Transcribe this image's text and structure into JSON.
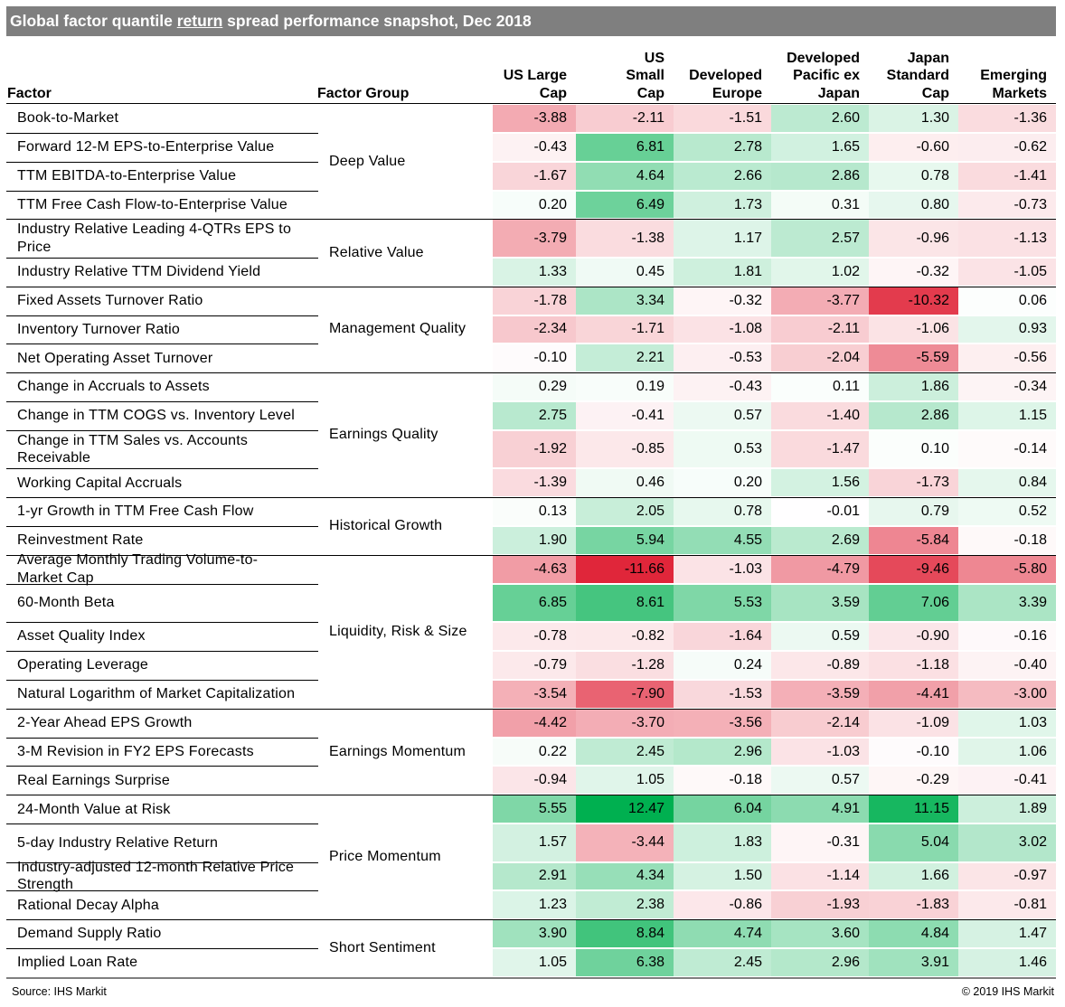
{
  "title": {
    "before": "Global factor quantile ",
    "underlined": "return",
    "after": " spread performance snapshot, Dec 2018"
  },
  "headers": {
    "factor": "Factor",
    "group": "Factor Group",
    "columns": [
      "US Large\nCap",
      "US\nSmall\nCap",
      "Developed\nEurope",
      "Developed\nPacific ex\nJapan",
      "Japan\nStandard\nCap",
      "Emerging\nMarkets"
    ]
  },
  "chart_data": {
    "type": "table",
    "title": "Global factor quantile return spread performance snapshot, Dec 2018",
    "columns": [
      "US Large Cap",
      "US Small Cap",
      "Developed Europe",
      "Developed Pacific ex Japan",
      "Japan Standard Cap",
      "Emerging Markets"
    ],
    "groups": [
      {
        "name": "Deep Value",
        "rows": [
          {
            "factor": "Book-to-Market",
            "values": [
              -3.88,
              -2.11,
              -1.51,
              2.6,
              1.3,
              -1.36
            ]
          },
          {
            "factor": "Forward 12-M EPS-to-Enterprise Value",
            "values": [
              -0.43,
              6.81,
              2.78,
              1.65,
              -0.6,
              -0.62
            ]
          },
          {
            "factor": "TTM EBITDA-to-Enterprise Value",
            "values": [
              -1.67,
              4.64,
              2.66,
              2.86,
              0.78,
              -1.41
            ]
          },
          {
            "factor": "TTM Free Cash Flow-to-Enterprise Value",
            "values": [
              0.2,
              6.49,
              1.73,
              0.31,
              0.8,
              -0.73
            ]
          }
        ]
      },
      {
        "name": "Relative Value",
        "rows": [
          {
            "factor": "Industry Relative Leading 4-QTRs EPS to\nPrice",
            "values": [
              -3.79,
              -1.38,
              1.17,
              2.57,
              -0.96,
              -1.13
            ]
          },
          {
            "factor": "Industry Relative TTM Dividend Yield",
            "values": [
              1.33,
              0.45,
              1.81,
              1.02,
              -0.32,
              -1.05
            ]
          }
        ]
      },
      {
        "name": "Management Quality",
        "rows": [
          {
            "factor": "Fixed Assets Turnover Ratio",
            "values": [
              -1.78,
              3.34,
              -0.32,
              -3.77,
              -10.32,
              0.06
            ]
          },
          {
            "factor": "Inventory Turnover Ratio",
            "values": [
              -2.34,
              -1.71,
              -1.08,
              -2.11,
              -1.06,
              0.93
            ]
          },
          {
            "factor": "Net Operating Asset Turnover",
            "values": [
              -0.1,
              2.21,
              -0.53,
              -2.04,
              -5.59,
              -0.56
            ]
          }
        ]
      },
      {
        "name": "Earnings Quality",
        "rows": [
          {
            "factor": "Change in Accruals to Assets",
            "values": [
              0.29,
              0.19,
              -0.43,
              0.11,
              1.86,
              -0.34
            ]
          },
          {
            "factor": "Change in TTM COGS vs. Inventory Level",
            "values": [
              2.75,
              -0.41,
              0.57,
              -1.4,
              2.86,
              1.15
            ]
          },
          {
            "factor": "Change in TTM Sales vs. Accounts\nReceivable",
            "values": [
              -1.92,
              -0.85,
              0.53,
              -1.47,
              0.1,
              -0.14
            ]
          },
          {
            "factor": "Working Capital Accruals",
            "values": [
              -1.39,
              0.46,
              0.2,
              1.56,
              -1.73,
              0.84
            ]
          }
        ]
      },
      {
        "name": "Historical Growth",
        "rows": [
          {
            "factor": "1-yr Growth in TTM Free Cash Flow",
            "values": [
              0.13,
              2.05,
              0.78,
              -0.01,
              0.79,
              0.52
            ]
          },
          {
            "factor": "Reinvestment Rate",
            "values": [
              1.9,
              5.94,
              4.55,
              2.69,
              -5.84,
              -0.18
            ]
          }
        ]
      },
      {
        "name": "Liquidity, Risk & Size",
        "rows": [
          {
            "factor": "Average Monthly Trading Volume-to-\nMarket Cap",
            "values": [
              -4.63,
              -11.66,
              -1.03,
              -4.79,
              -9.46,
              -5.8
            ]
          },
          {
            "factor": "60-Month Beta",
            "values": [
              6.85,
              8.61,
              5.53,
              3.59,
              7.06,
              3.39
            ]
          },
          {
            "factor": "Asset Quality Index",
            "values": [
              -0.78,
              -0.82,
              -1.64,
              0.59,
              -0.9,
              -0.16
            ]
          },
          {
            "factor": "Operating Leverage",
            "values": [
              -0.79,
              -1.28,
              0.24,
              -0.89,
              -1.18,
              -0.4
            ]
          },
          {
            "factor": "Natural Logarithm of Market Capitalization",
            "values": [
              -3.54,
              -7.9,
              -1.53,
              -3.59,
              -4.41,
              -3.0
            ]
          }
        ]
      },
      {
        "name": "Earnings Momentum",
        "rows": [
          {
            "factor": "2-Year Ahead EPS Growth",
            "values": [
              -4.42,
              -3.7,
              -3.56,
              -2.14,
              -1.09,
              1.03
            ]
          },
          {
            "factor": "3-M Revision in FY2 EPS Forecasts",
            "values": [
              0.22,
              2.45,
              2.96,
              -1.03,
              -0.1,
              1.06
            ]
          },
          {
            "factor": "Real Earnings Surprise",
            "values": [
              -0.94,
              1.05,
              -0.18,
              0.57,
              -0.29,
              -0.41
            ]
          }
        ]
      },
      {
        "name": "Price Momentum",
        "rows": [
          {
            "factor": "24-Month Value at Risk",
            "values": [
              5.55,
              12.47,
              6.04,
              4.91,
              11.15,
              1.89
            ]
          },
          {
            "factor": "5-day Industry Relative Return",
            "values": [
              1.57,
              -3.44,
              1.83,
              -0.31,
              5.04,
              3.02
            ]
          },
          {
            "factor": "Industry-adjusted 12-month Relative Price\nStrength",
            "values": [
              2.91,
              4.34,
              1.5,
              -1.14,
              1.66,
              -0.97
            ]
          },
          {
            "factor": "Rational Decay Alpha",
            "values": [
              1.23,
              2.38,
              -0.86,
              -1.93,
              -1.83,
              -0.81
            ]
          }
        ]
      },
      {
        "name": "Short Sentiment",
        "rows": [
          {
            "factor": "Demand Supply Ratio",
            "values": [
              3.9,
              8.84,
              4.74,
              3.6,
              4.84,
              1.47
            ]
          },
          {
            "factor": "Implied Loan Rate",
            "values": [
              1.05,
              6.38,
              2.45,
              2.96,
              3.91,
              1.46
            ]
          }
        ]
      }
    ],
    "color_scale": {
      "positive": "#00b050",
      "negative": "#e0263a",
      "zero": "#ffffff"
    }
  },
  "footer": {
    "source": "Source: IHS Markit",
    "copyright": "© 2019 IHS Markit"
  }
}
